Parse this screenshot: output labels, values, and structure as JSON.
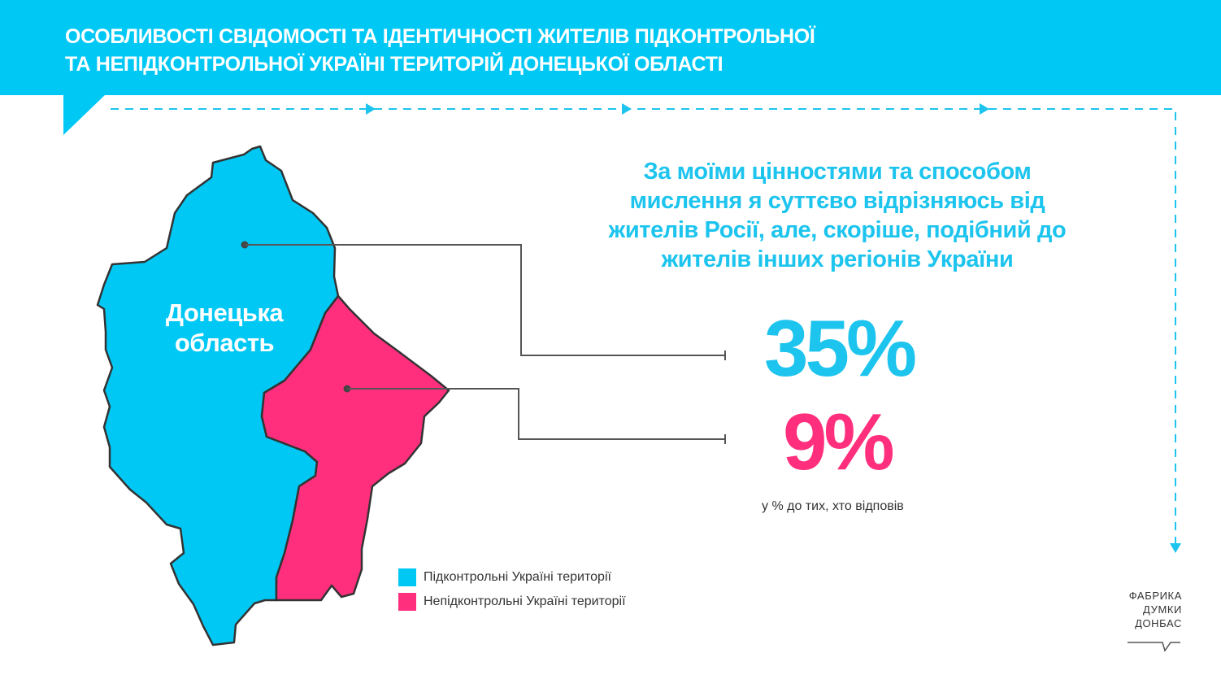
{
  "header": {
    "title_line1": "ОСОБЛИВОСТІ СВІДОМОСТІ ТА ІДЕНТИЧНОСТІ ЖИТЕЛІВ ПІДКОНТРОЛЬНОЇ",
    "title_line2": "ТА НЕПІДКОНТРОЛЬНОЇ УКРАЇНІ ТЕРИТОРІЙ ДОНЕЦЬКОЇ ОБЛАСТІ"
  },
  "question": "За моїми цінностями та способом мислення я суттєво відрізняюсь від жителів Росії, але, скоріше, подібний до жителів інших регіонів України",
  "results": {
    "controlled_pct": "35%",
    "uncontrolled_pct": "9%",
    "note": "у % до тих, хто відповів"
  },
  "map": {
    "region_label_line1": "Донецька",
    "region_label_line2": "область"
  },
  "legend": [
    {
      "label": "Підконтрольні Україні території",
      "color": "#00c8f4"
    },
    {
      "label": "Непідконтрольні Україні території",
      "color": "#ff2f7d"
    }
  ],
  "brand": {
    "line1": "ФАБРИКА",
    "line2": "ДУМКИ",
    "line3": "ДОНБАС"
  },
  "colors": {
    "accent_blue": "#00c8f4",
    "accent_pink": "#ff2f7d",
    "connector": "#555555"
  }
}
